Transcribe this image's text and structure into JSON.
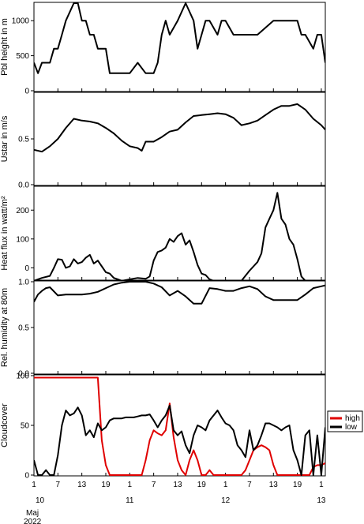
{
  "x_axis": {
    "tick_labels": [
      "1",
      "7",
      "13",
      "19",
      "1",
      "7",
      "13",
      "19",
      "1",
      "7",
      "13",
      "19",
      "1",
      "7",
      "13",
      "19",
      "1",
      "7",
      "13"
    ],
    "hours": [
      0,
      6,
      12,
      18,
      24,
      30,
      36,
      42,
      48,
      54,
      60,
      66,
      72,
      78,
      84,
      90,
      96,
      102,
      108
    ],
    "day_labels": [
      {
        "label": "10",
        "hour": 0
      },
      {
        "label": "11",
        "hour": 24
      },
      {
        "label": "12",
        "hour": 48
      },
      {
        "label": "13",
        "hour": 72
      }
    ],
    "month_label": "Maj",
    "year_label": "2022"
  },
  "chart_data": [
    {
      "type": "line",
      "ylabel": "Pbl height in m",
      "ylim": [
        0,
        1250
      ],
      "yticks": [
        0,
        500,
        1000
      ],
      "x": [
        0,
        1,
        2,
        4,
        5,
        6,
        7,
        8,
        10,
        11,
        12,
        13,
        14,
        15,
        16,
        18,
        19,
        20,
        21,
        24,
        26,
        28,
        30,
        31,
        32,
        33,
        34,
        36,
        38,
        40,
        41,
        42,
        43,
        44,
        46,
        47,
        48,
        50,
        53,
        54,
        56,
        60,
        64,
        66,
        67,
        68,
        70,
        71,
        72,
        73
      ],
      "series": [
        {
          "name": "",
          "color": "#000000",
          "values": [
            400,
            250,
            400,
            400,
            600,
            600,
            800,
            1000,
            1250,
            1250,
            1000,
            1000,
            800,
            800,
            600,
            600,
            250,
            250,
            250,
            250,
            400,
            250,
            250,
            400,
            800,
            1000,
            800,
            1000,
            1250,
            1000,
            600,
            800,
            1000,
            1000,
            800,
            1000,
            1000,
            800,
            800,
            800,
            800,
            1000,
            1000,
            1000,
            800,
            800,
            600,
            800,
            800,
            400
          ]
        }
      ]
    },
    {
      "type": "line",
      "ylabel": "Ustar in m/s",
      "ylim": [
        0,
        1.0
      ],
      "yticks": [
        0.0,
        0.5
      ],
      "x": [
        0,
        2,
        4,
        6,
        8,
        10,
        12,
        14,
        16,
        18,
        20,
        22,
        24,
        26,
        27,
        28,
        30,
        32,
        34,
        36,
        38,
        40,
        42,
        44,
        46,
        48,
        50,
        52,
        54,
        56,
        58,
        60,
        62,
        64,
        66,
        68,
        70,
        72,
        73
      ],
      "series": [
        {
          "name": "",
          "color": "#000000",
          "values": [
            0.38,
            0.36,
            0.42,
            0.5,
            0.62,
            0.72,
            0.7,
            0.69,
            0.67,
            0.62,
            0.56,
            0.48,
            0.42,
            0.4,
            0.37,
            0.47,
            0.47,
            0.52,
            0.58,
            0.6,
            0.68,
            0.75,
            0.76,
            0.77,
            0.78,
            0.77,
            0.73,
            0.65,
            0.67,
            0.7,
            0.76,
            0.82,
            0.86,
            0.86,
            0.88,
            0.82,
            0.72,
            0.65,
            0.6
          ]
        }
      ]
    },
    {
      "type": "line",
      "ylabel": "Heat flux in watt/m²",
      "ylim": [
        -40,
        280
      ],
      "yticks": [
        0,
        100,
        200
      ],
      "x": [
        0,
        2,
        4,
        5,
        6,
        7,
        8,
        9,
        10,
        11,
        12,
        13,
        14,
        15,
        16,
        17,
        18,
        19,
        20,
        21,
        22,
        24,
        26,
        28,
        29,
        30,
        31,
        32,
        33,
        34,
        35,
        36,
        37,
        38,
        39,
        40,
        41,
        42,
        43,
        44,
        46,
        48,
        50,
        52,
        54,
        56,
        57,
        58,
        59,
        60,
        61,
        62,
        63,
        64,
        65,
        66,
        67,
        68,
        69,
        70,
        71,
        72,
        73
      ],
      "series": [
        {
          "name": "",
          "color": "#000000",
          "values": [
            -45,
            -35,
            -28,
            0,
            30,
            28,
            0,
            5,
            30,
            15,
            20,
            35,
            45,
            15,
            25,
            5,
            -15,
            -20,
            -35,
            -40,
            -45,
            -40,
            -35,
            -38,
            -30,
            25,
            55,
            60,
            70,
            100,
            90,
            110,
            120,
            80,
            95,
            55,
            10,
            -20,
            -25,
            -40,
            -50,
            -45,
            -45,
            -45,
            -10,
            20,
            50,
            140,
            170,
            200,
            260,
            170,
            150,
            100,
            80,
            30,
            -30,
            -45,
            -50,
            -50,
            -50,
            -50,
            -50
          ]
        }
      ]
    },
    {
      "type": "line",
      "ylabel": "Rel. humidity at 80m",
      "ylim": [
        0,
        1.0
      ],
      "yticks": [
        0.0,
        0.5,
        1.0
      ],
      "x": [
        0,
        1,
        2,
        3,
        4,
        6,
        8,
        10,
        12,
        14,
        16,
        18,
        20,
        22,
        24,
        26,
        28,
        30,
        32,
        34,
        36,
        38,
        40,
        42,
        44,
        46,
        48,
        50,
        52,
        54,
        56,
        58,
        60,
        62,
        64,
        66,
        68,
        70,
        72,
        73
      ],
      "series": [
        {
          "name": "",
          "color": "#000000",
          "values": [
            0.78,
            0.86,
            0.9,
            0.93,
            0.94,
            0.85,
            0.86,
            0.86,
            0.86,
            0.87,
            0.89,
            0.93,
            0.97,
            0.99,
            1.0,
            1.0,
            1.0,
            0.98,
            0.94,
            0.85,
            0.9,
            0.84,
            0.76,
            0.76,
            0.93,
            0.92,
            0.9,
            0.9,
            0.93,
            0.95,
            0.92,
            0.84,
            0.8,
            0.8,
            0.8,
            0.8,
            0.86,
            0.93,
            0.95,
            0.96
          ]
        }
      ]
    },
    {
      "type": "line",
      "ylabel": "Cloudcover",
      "ylim": [
        0,
        100
      ],
      "yticks": [
        0,
        50,
        100
      ],
      "x": [
        0,
        1,
        2,
        3,
        4,
        5,
        6,
        7,
        8,
        9,
        10,
        11,
        12,
        13,
        14,
        15,
        16,
        17,
        18,
        19,
        20,
        21,
        22,
        23,
        24,
        25,
        26,
        27,
        28,
        29,
        30,
        31,
        32,
        33,
        34,
        35,
        36,
        37,
        38,
        39,
        40,
        41,
        42,
        43,
        44,
        45,
        46,
        47,
        48,
        49,
        50,
        51,
        52,
        53,
        54,
        55,
        56,
        57,
        58,
        59,
        60,
        61,
        62,
        63,
        64,
        65,
        66,
        67,
        68,
        69,
        70,
        71,
        72,
        73
      ],
      "series": [
        {
          "name": "high",
          "color": "#e00000",
          "values": [
            98,
            98,
            98,
            98,
            98,
            98,
            98,
            98,
            98,
            98,
            98,
            98,
            98,
            98,
            98,
            98,
            98,
            35,
            10,
            0,
            0,
            0,
            0,
            0,
            0,
            0,
            0,
            0,
            15,
            35,
            45,
            42,
            40,
            45,
            72,
            38,
            15,
            5,
            0,
            15,
            25,
            15,
            0,
            0,
            5,
            0,
            0,
            0,
            0,
            0,
            0,
            0,
            0,
            5,
            15,
            25,
            28,
            30,
            28,
            25,
            10,
            0,
            0,
            0,
            0,
            0,
            0,
            0,
            0,
            0,
            8,
            10,
            10,
            12
          ]
        },
        {
          "name": "low",
          "color": "#000000",
          "values": [
            15,
            0,
            0,
            5,
            0,
            0,
            20,
            50,
            65,
            60,
            62,
            68,
            60,
            40,
            45,
            38,
            52,
            45,
            48,
            55,
            57,
            57,
            57,
            58,
            58,
            58,
            59,
            60,
            60,
            61,
            55,
            48,
            55,
            60,
            70,
            45,
            40,
            44,
            30,
            22,
            40,
            50,
            48,
            45,
            55,
            60,
            65,
            58,
            52,
            50,
            45,
            30,
            25,
            18,
            45,
            25,
            30,
            40,
            52,
            52,
            50,
            48,
            45,
            48,
            50,
            25,
            15,
            0,
            40,
            45,
            0,
            40,
            0,
            48
          ]
        }
      ]
    }
  ]
}
